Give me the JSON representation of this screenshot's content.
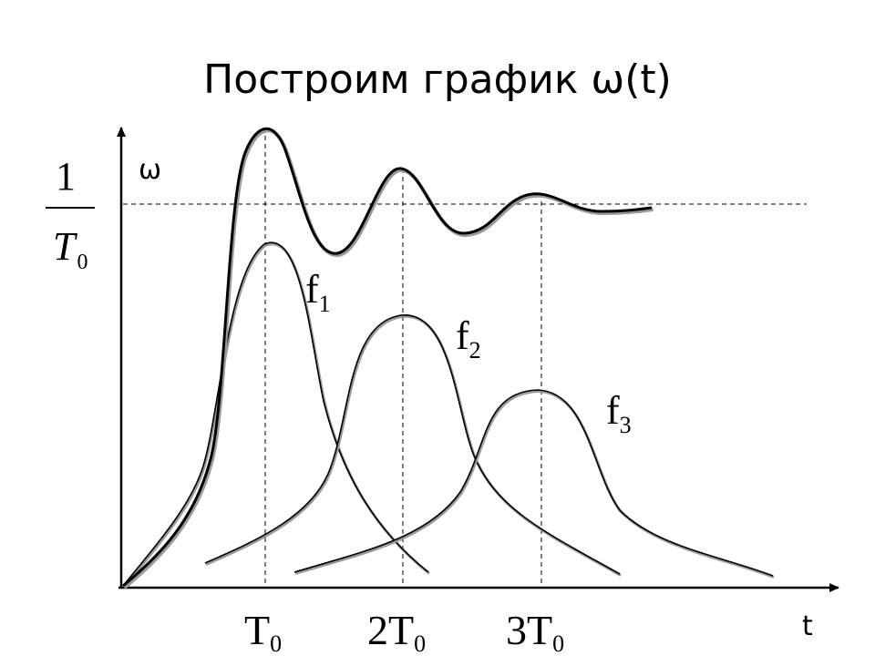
{
  "slide": {
    "title": "Построим график ω(t)"
  },
  "axes": {
    "y_label": "ω",
    "x_label": "t",
    "y_level": {
      "numerator": "1",
      "denominator": "T",
      "denominator_sub": "0"
    },
    "x_ticks": [
      {
        "prefix": "",
        "base": "T",
        "sub": "0"
      },
      {
        "prefix": "2",
        "base": "T",
        "sub": "0"
      },
      {
        "prefix": "3",
        "base": "T",
        "sub": "0"
      }
    ]
  },
  "curves": [
    {
      "base": "f",
      "sub": "1"
    },
    {
      "base": "f",
      "sub": "2"
    },
    {
      "base": "f",
      "sub": "3"
    }
  ],
  "colors": {
    "ink": "#000000",
    "shadow": "#9a9a9a"
  }
}
